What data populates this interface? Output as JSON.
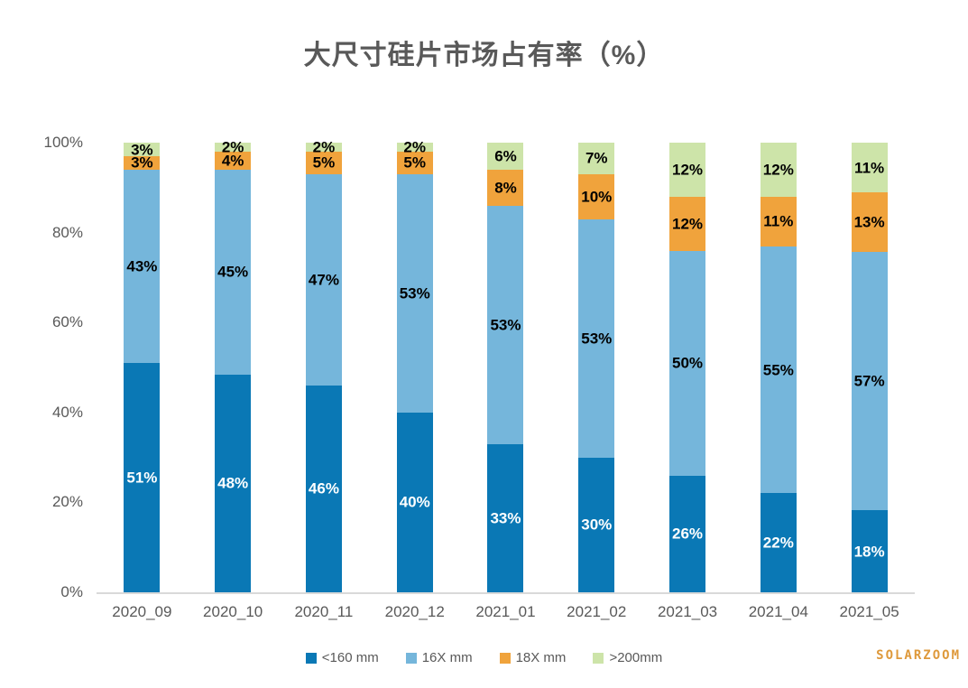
{
  "title": "大尺寸硅片市场占有率（%）",
  "watermark": "SOLARZOOM",
  "colors": {
    "title_text": "#595959",
    "axis_text": "#595959",
    "axis_line": "#d9d9d9",
    "watermark": "#de993b",
    "label_on_dark_segment": "#ffffff",
    "label_on_light_segment": "#000000"
  },
  "chart_data": {
    "type": "bar",
    "stacked": true,
    "title": "大尺寸硅片市场占有率（%）",
    "xlabel": "",
    "ylabel": "",
    "ylim": [
      0,
      100
    ],
    "yticks": [
      "0%",
      "20%",
      "40%",
      "60%",
      "80%",
      "100%"
    ],
    "grid": false,
    "legend_position": "bottom",
    "data_labels": true,
    "categories": [
      "2020_09",
      "2020_10",
      "2020_11",
      "2020_12",
      "2021_01",
      "2021_02",
      "2021_03",
      "2021_04",
      "2021_05"
    ],
    "series": [
      {
        "name": "<160 mm",
        "color": "#0a78b5",
        "label_color": "#ffffff",
        "values": [
          51,
          48,
          46,
          40,
          33,
          30,
          26,
          22,
          18
        ]
      },
      {
        "name": "16X mm",
        "color": "#75b6db",
        "label_color": "#000000",
        "values": [
          43,
          45,
          47,
          53,
          53,
          53,
          50,
          55,
          57
        ]
      },
      {
        "name": "18X mm",
        "color": "#f0a33c",
        "label_color": "#000000",
        "values": [
          3,
          4,
          5,
          5,
          8,
          10,
          12,
          11,
          13
        ]
      },
      {
        "name": ">200mm",
        "color": "#cde4a9",
        "label_color": "#000000",
        "values": [
          3,
          2,
          2,
          2,
          6,
          7,
          12,
          12,
          11
        ]
      }
    ]
  }
}
